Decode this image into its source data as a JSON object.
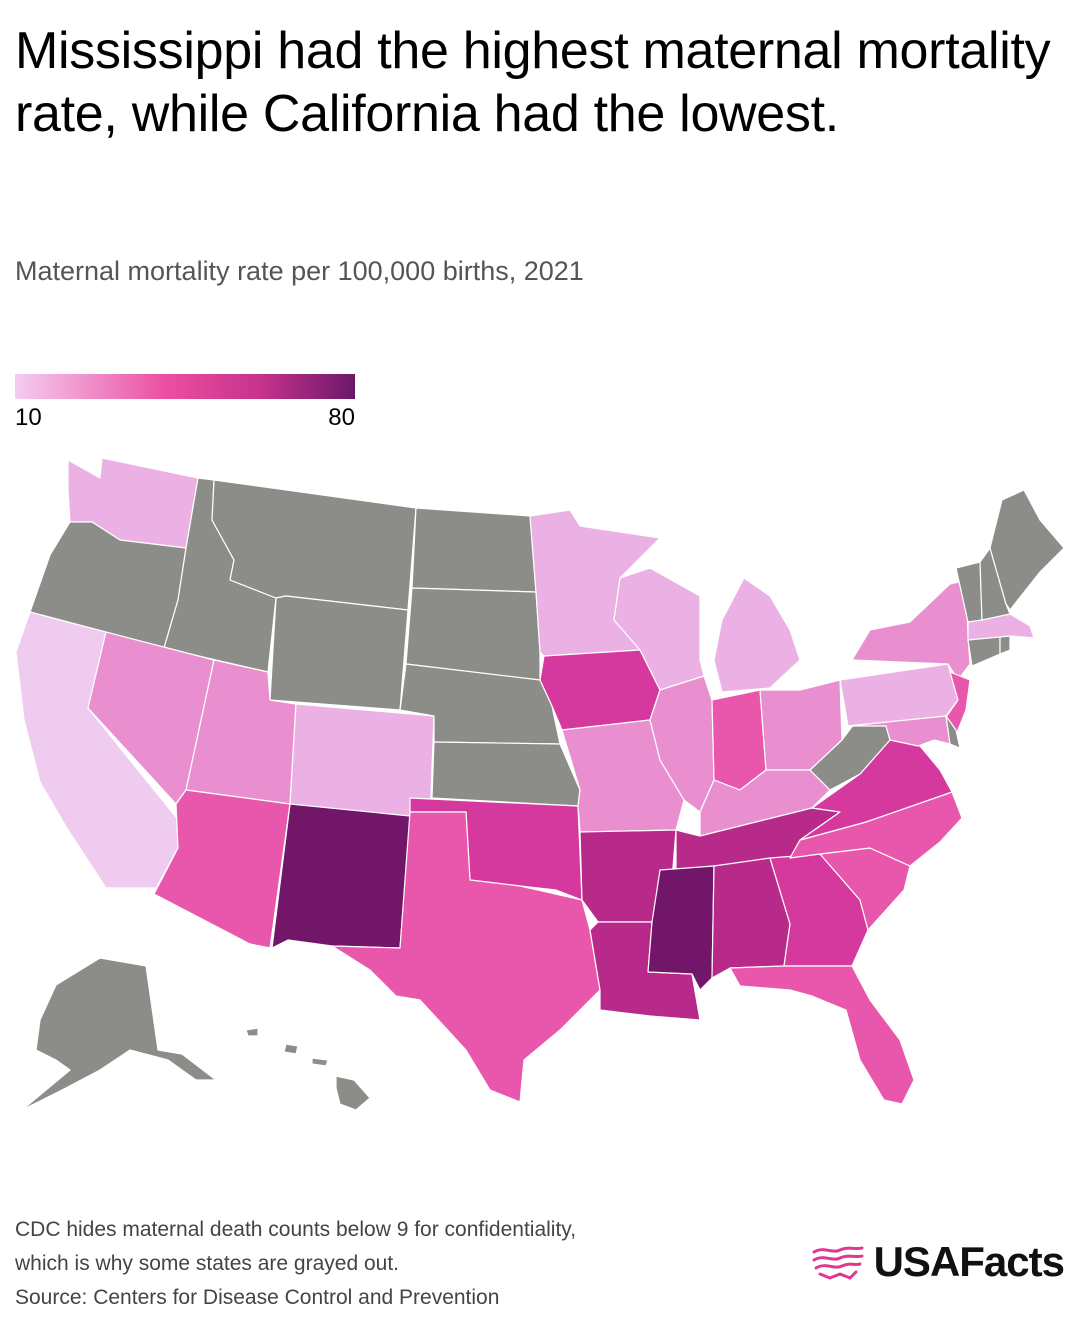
{
  "header": {
    "title": "Mississippi had the highest maternal mortality rate, while California had the lowest.",
    "subtitle": "Maternal mortality rate per 100,000 births, 2021"
  },
  "legend": {
    "min_label": "10",
    "max_label": "80",
    "color_low": "#f3cdf0",
    "color_mid": "#ec4da0",
    "color_high": "#6b1868"
  },
  "colors": {
    "no_data": "#8c8c89",
    "lightest": "#f0cbf0",
    "light": "#ebb0e4",
    "light_mid": "#e98fd0",
    "mid": "#e857ac",
    "mid_dark": "#d6399e",
    "dark": "#b72a89",
    "darkest": "#72166a"
  },
  "chart_data": {
    "type": "choropleth",
    "title": "Mississippi had the highest maternal mortality rate, while California had the lowest.",
    "subtitle": "Maternal mortality rate per 100,000 births, 2021",
    "scale": {
      "min": 10,
      "max": 80
    },
    "states": [
      {
        "code": "WA",
        "level": "light"
      },
      {
        "code": "OR",
        "level": "no_data"
      },
      {
        "code": "CA",
        "level": "lightest"
      },
      {
        "code": "ID",
        "level": "no_data"
      },
      {
        "code": "NV",
        "level": "light_mid"
      },
      {
        "code": "MT",
        "level": "no_data"
      },
      {
        "code": "WY",
        "level": "no_data"
      },
      {
        "code": "UT",
        "level": "light_mid"
      },
      {
        "code": "AZ",
        "level": "mid"
      },
      {
        "code": "CO",
        "level": "light"
      },
      {
        "code": "NM",
        "level": "darkest"
      },
      {
        "code": "ND",
        "level": "no_data"
      },
      {
        "code": "SD",
        "level": "no_data"
      },
      {
        "code": "NE",
        "level": "no_data"
      },
      {
        "code": "KS",
        "level": "no_data"
      },
      {
        "code": "OK",
        "level": "mid_dark"
      },
      {
        "code": "TX",
        "level": "mid"
      },
      {
        "code": "MN",
        "level": "light"
      },
      {
        "code": "IA",
        "level": "mid_dark"
      },
      {
        "code": "MO",
        "level": "light_mid"
      },
      {
        "code": "AR",
        "level": "dark"
      },
      {
        "code": "LA",
        "level": "dark"
      },
      {
        "code": "WI",
        "level": "light"
      },
      {
        "code": "IL",
        "level": "light_mid"
      },
      {
        "code": "MI",
        "level": "light"
      },
      {
        "code": "IN",
        "level": "mid"
      },
      {
        "code": "OH",
        "level": "light_mid"
      },
      {
        "code": "KY",
        "level": "light_mid"
      },
      {
        "code": "TN",
        "level": "dark"
      },
      {
        "code": "MS",
        "level": "darkest"
      },
      {
        "code": "AL",
        "level": "dark"
      },
      {
        "code": "GA",
        "level": "mid_dark"
      },
      {
        "code": "FL",
        "level": "mid"
      },
      {
        "code": "SC",
        "level": "mid"
      },
      {
        "code": "NC",
        "level": "mid"
      },
      {
        "code": "VA",
        "level": "mid_dark"
      },
      {
        "code": "WV",
        "level": "no_data"
      },
      {
        "code": "PA",
        "level": "light"
      },
      {
        "code": "NY",
        "level": "light_mid"
      },
      {
        "code": "NJ",
        "level": "mid"
      },
      {
        "code": "MD",
        "level": "light_mid"
      },
      {
        "code": "DE",
        "level": "no_data"
      },
      {
        "code": "CT",
        "level": "no_data"
      },
      {
        "code": "RI",
        "level": "no_data"
      },
      {
        "code": "MA",
        "level": "light"
      },
      {
        "code": "VT",
        "level": "no_data"
      },
      {
        "code": "NH",
        "level": "no_data"
      },
      {
        "code": "ME",
        "level": "no_data"
      },
      {
        "code": "AK",
        "level": "no_data"
      },
      {
        "code": "HI",
        "level": "no_data"
      }
    ]
  },
  "footer": {
    "note_line1": "CDC hides maternal death counts below 9 for confidentiality,",
    "note_line2": "which is why some states are grayed out.",
    "source": "Source: Centers for Disease Control and Prevention"
  },
  "brand": {
    "name": "USAFacts",
    "accent": "#e0388f"
  }
}
